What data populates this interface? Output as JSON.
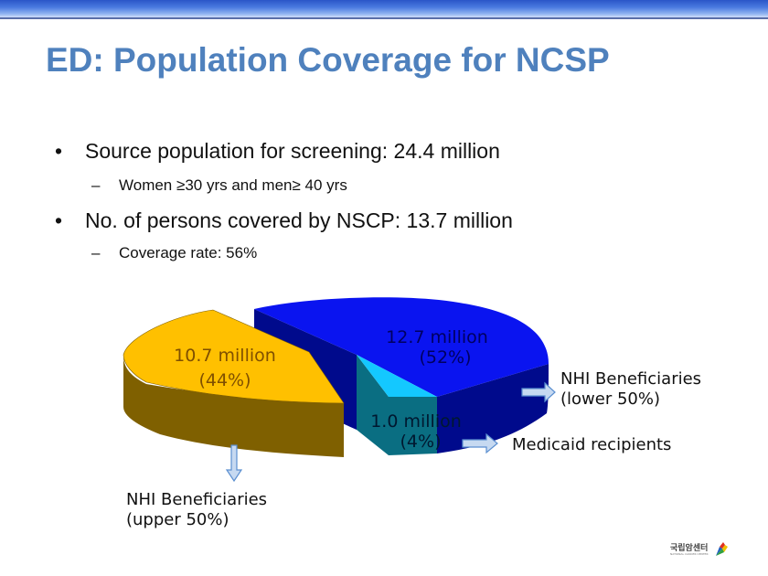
{
  "slide": {
    "title": "ED: Population Coverage for NCSP",
    "bullets": [
      {
        "text": "Source population for screening: 24.4 million",
        "sub": "Women ≥30 yrs  and men≥ 40 yrs"
      },
      {
        "text": "No. of persons covered by NSCP: 13.7 million",
        "sub": "Coverage rate: 56%"
      }
    ],
    "bullet_glyph": "•",
    "dash_glyph": "–",
    "logo": {
      "text": "국립암센터",
      "subtext": "NATIONAL CANCER CENTER"
    }
  },
  "chart_data": {
    "type": "pie",
    "style": "3d-exploded",
    "unit": "million",
    "slices": [
      {
        "name": "NHI Beneficiaries (upper 50%)",
        "value": 10.7,
        "percent": 44,
        "label_line1": "10.7 million",
        "label_line2": "(44%)",
        "color": "#ffc000",
        "side_color": "#7f6000"
      },
      {
        "name": "NHI Beneficiaries (lower 50%)",
        "value": 12.7,
        "percent": 52,
        "label_line1": "12.7 million",
        "label_line2": "(52%)",
        "color": "#0a14f0",
        "side_color": "#000a8c"
      },
      {
        "name": "Medicaid recipients",
        "value": 1.0,
        "percent": 4,
        "label_line1": "1.0 million",
        "label_line2": "(4%)",
        "color": "#14c8ff",
        "side_color": "#0a6e82"
      }
    ],
    "callouts": [
      {
        "line1": "NHI Beneficiaries",
        "line2": "(upper 50%)",
        "arrow": "down"
      },
      {
        "line1": "NHI Beneficiaries",
        "line2": "(lower 50%)",
        "arrow": "right"
      },
      {
        "line1": "Medicaid recipients",
        "line2": "",
        "arrow": "right"
      }
    ]
  }
}
